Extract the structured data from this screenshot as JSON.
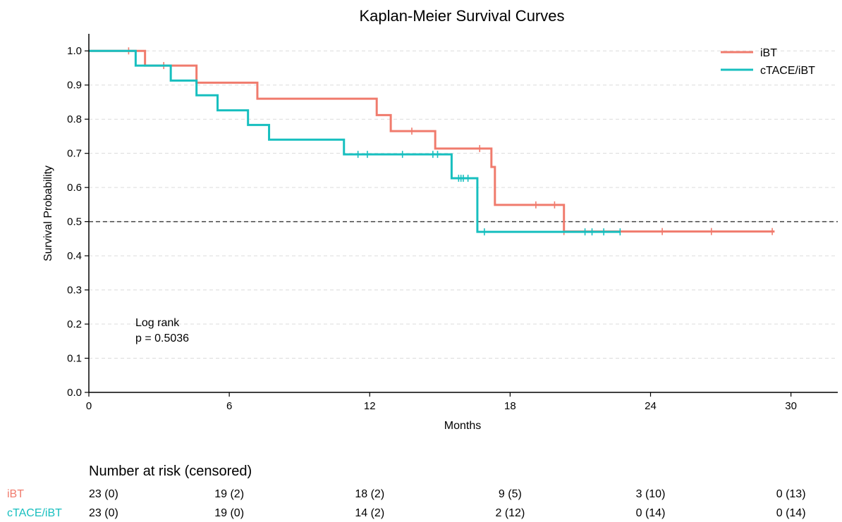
{
  "chart_data": {
    "type": "line",
    "title": "Kaplan-Meier Survival Curves",
    "xlabel": "Months",
    "ylabel": "Survival Probability",
    "xlim": [
      0,
      32
    ],
    "ylim": [
      0,
      1.05
    ],
    "xticks": [
      0,
      6,
      12,
      18,
      24,
      30
    ],
    "yticks": [
      0.0,
      0.1,
      0.2,
      0.3,
      0.4,
      0.5,
      0.6,
      0.7,
      0.8,
      0.9,
      1.0
    ],
    "grid": "horizontal dashed",
    "legend_position": "top-right",
    "median_line": 0.5,
    "annotation": [
      "Log rank",
      "p = 0.5036"
    ],
    "series": [
      {
        "name": "iBT",
        "color": "#f07b6d",
        "steps": [
          [
            0,
            1.0
          ],
          [
            2.4,
            0.957
          ],
          [
            4.6,
            0.907
          ],
          [
            7.2,
            0.86
          ],
          [
            12.3,
            0.812
          ],
          [
            12.9,
            0.765
          ],
          [
            14.8,
            0.714
          ],
          [
            17.2,
            0.66
          ],
          [
            17.35,
            0.549
          ],
          [
            20.3,
            0.471
          ],
          [
            29.3,
            0.471
          ]
        ],
        "censored": [
          [
            1.7,
            1.0
          ],
          [
            3.2,
            0.957
          ],
          [
            13.8,
            0.765
          ],
          [
            16.7,
            0.714
          ],
          [
            19.1,
            0.549
          ],
          [
            19.9,
            0.549
          ],
          [
            20.3,
            0.471
          ],
          [
            24.5,
            0.471
          ],
          [
            26.6,
            0.471
          ],
          [
            29.2,
            0.471
          ]
        ]
      },
      {
        "name": "cTACE/iBT",
        "color": "#17bfbf",
        "steps": [
          [
            0,
            1.0
          ],
          [
            2.0,
            0.957
          ],
          [
            3.5,
            0.913
          ],
          [
            4.6,
            0.87
          ],
          [
            5.5,
            0.826
          ],
          [
            6.8,
            0.783
          ],
          [
            7.7,
            0.74
          ],
          [
            10.9,
            0.697
          ],
          [
            15.5,
            0.627
          ],
          [
            16.6,
            0.47
          ],
          [
            22.7,
            0.47
          ]
        ],
        "censored": [
          [
            11.5,
            0.697
          ],
          [
            11.9,
            0.697
          ],
          [
            13.4,
            0.697
          ],
          [
            14.7,
            0.697
          ],
          [
            14.9,
            0.697
          ],
          [
            15.8,
            0.627
          ],
          [
            15.9,
            0.627
          ],
          [
            16.0,
            0.627
          ],
          [
            16.2,
            0.627
          ],
          [
            16.9,
            0.47
          ],
          [
            21.2,
            0.47
          ],
          [
            21.5,
            0.47
          ],
          [
            22.0,
            0.47
          ],
          [
            22.7,
            0.47
          ]
        ]
      }
    ]
  },
  "risk_table": {
    "heading": "Number at risk (censored)",
    "times": [
      0,
      6,
      12,
      18,
      24,
      30
    ],
    "rows": [
      {
        "label": "iBT",
        "color": "#f07b6d",
        "values": [
          "23 (0)",
          "19 (2)",
          "18 (2)",
          "9 (5)",
          "3 (10)",
          "0 (13)"
        ]
      },
      {
        "label": "cTACE/iBT",
        "color": "#17bfbf",
        "values": [
          "23 (0)",
          "19 (0)",
          "14 (2)",
          "2 (12)",
          "0 (14)",
          "0 (14)"
        ]
      }
    ]
  }
}
